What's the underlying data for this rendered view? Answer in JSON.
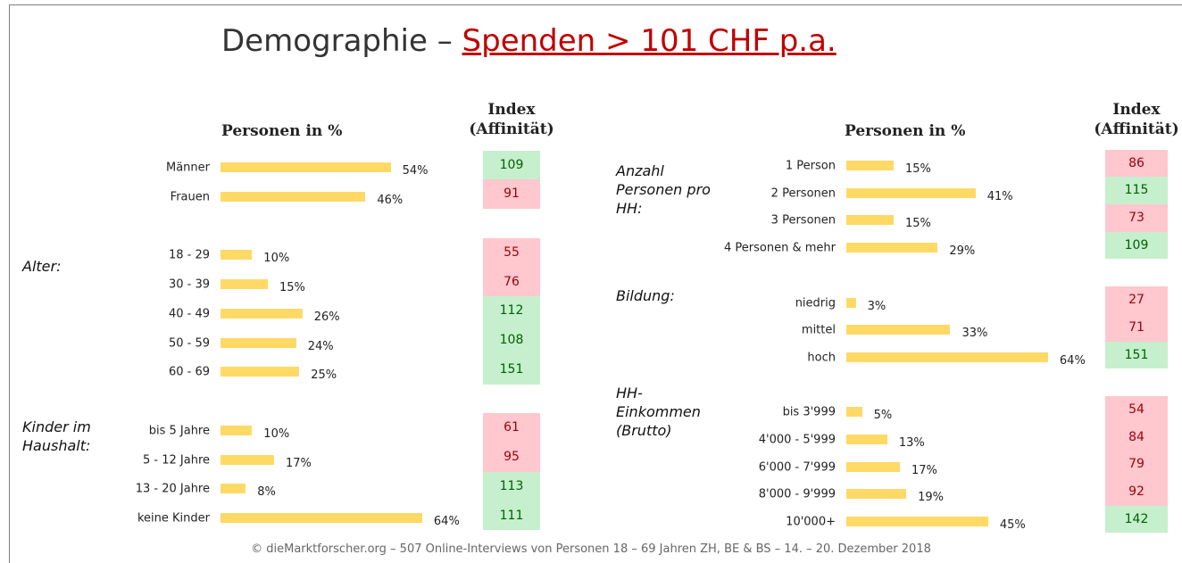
{
  "title": {
    "lead": "Demographie – ",
    "highlight": "Spenden > 101 CHF p.a."
  },
  "footer": "© dieMarktforscher.org – 507 Online-Interviews von Personen 18 – 69 Jahren ZH, BE & BS  – 14. – 20. Dezember 2018",
  "palette": {
    "high": {
      "fill": "#c6efce",
      "text": "#006100"
    },
    "low": {
      "fill": "#ffc7ce",
      "text": "#9c0006"
    }
  },
  "chart_data": [
    {
      "type": "bar",
      "orientation": "horizontal",
      "color": "#ffd966",
      "header": "Personen in %",
      "index_header": [
        "Index",
        "(Affinität)"
      ],
      "groups": [
        {
          "categories": [
            "Männer",
            "Frauen"
          ],
          "values": [
            54,
            46
          ],
          "value_labels": [
            "54%",
            "46%"
          ],
          "index": [
            109,
            91
          ],
          "index_level": [
            "high",
            "low"
          ]
        },
        {
          "label": "Alter:",
          "categories": [
            "18 - 29",
            "30 - 39",
            "40 - 49",
            "50 - 59",
            "60 - 69"
          ],
          "values": [
            10,
            15,
            26,
            24,
            25
          ],
          "value_labels": [
            "10%",
            "15%",
            "26%",
            "24%",
            "25%"
          ],
          "index": [
            55,
            76,
            112,
            108,
            151
          ],
          "index_level": [
            "low",
            "low",
            "high",
            "high",
            "high"
          ]
        },
        {
          "label": "Kinder im Haushalt:",
          "categories": [
            "bis 5 Jahre",
            "5 - 12 Jahre",
            "13 - 20 Jahre",
            "keine Kinder"
          ],
          "values": [
            10,
            17,
            8,
            64
          ],
          "value_labels": [
            "10%",
            "17%",
            "8%",
            "64%"
          ],
          "index": [
            61,
            95,
            113,
            111
          ],
          "index_level": [
            "low",
            "low",
            "high",
            "high"
          ]
        }
      ]
    },
    {
      "type": "bar",
      "orientation": "horizontal",
      "color": "#ffd966",
      "header": "Personen in %",
      "index_header": [
        "Index",
        "(Affinität)"
      ],
      "groups": [
        {
          "label": "Anzahl Personen pro HH:",
          "categories": [
            "1 Person",
            "2 Personen",
            "3 Personen",
            "4 Personen & mehr"
          ],
          "values": [
            15,
            41,
            15,
            29
          ],
          "value_labels": [
            "15%",
            "41%",
            "15%",
            "29%"
          ],
          "index": [
            86,
            115,
            73,
            109
          ],
          "index_level": [
            "low",
            "high",
            "low",
            "high"
          ]
        },
        {
          "label": "Bildung:",
          "categories": [
            "niedrig",
            "mittel",
            "hoch"
          ],
          "values": [
            3,
            33,
            64
          ],
          "value_labels": [
            "3%",
            "33%",
            "64%"
          ],
          "index": [
            27,
            71,
            151
          ],
          "index_level": [
            "low",
            "low",
            "high"
          ]
        },
        {
          "label": "HH-Einkommen (Brutto)",
          "categories": [
            "bis 3'999",
            "4'000 - 5'999",
            "6'000 - 7'999",
            "8'000 - 9'999",
            "10'000+"
          ],
          "values": [
            5,
            13,
            17,
            19,
            45
          ],
          "value_labels": [
            "5%",
            "13%",
            "17%",
            "19%",
            "45%"
          ],
          "index": [
            54,
            84,
            79,
            92,
            142
          ],
          "index_level": [
            "low",
            "low",
            "low",
            "low",
            "high"
          ]
        }
      ]
    }
  ]
}
